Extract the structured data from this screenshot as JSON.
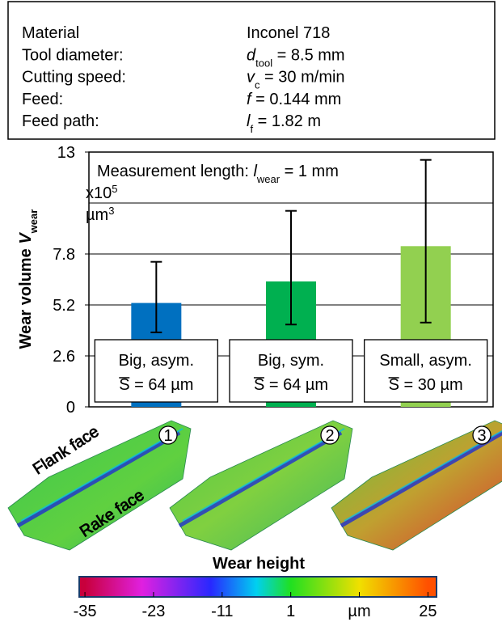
{
  "parameters": [
    {
      "label": "Material",
      "value": "Inconel 718"
    },
    {
      "label": "Tool diameter:",
      "symbol": "d",
      "subscript": "tool",
      "value": " = 8.5 mm"
    },
    {
      "label": "Cutting speed:",
      "symbol": "v",
      "subscript": "c",
      "value": " = 30 m/min"
    },
    {
      "label": "Feed:",
      "symbol": "f",
      "value": " = 0.144 mm"
    },
    {
      "label": "Feed path:",
      "symbol": "l",
      "subscript": "f",
      "value": " = 1.82 m"
    }
  ],
  "chart_data": {
    "type": "bar",
    "ylabel": "Wear volume ",
    "ylabel_symbol": "V",
    "ylabel_subscript": "wear",
    "y_multiplier": "x10",
    "y_multiplier_exponent": "5",
    "y_unit": "µm",
    "y_unit_exponent": "3",
    "annotation": {
      "text": "Measurement length: ",
      "symbol": "l",
      "subscript": "wear",
      "value": " = 1 mm"
    },
    "categories": [
      "Big, asym.",
      "Big, sym.",
      "Small, asym."
    ],
    "category_notes": [
      {
        "symbol": "S",
        "text": " = 64 µm"
      },
      {
        "symbol": "S",
        "text": " = 64 µm"
      },
      {
        "symbol": "S",
        "text": " = 30 µm"
      }
    ],
    "values": [
      5.3,
      6.4,
      8.2
    ],
    "error_low": [
      3.8,
      4.2,
      4.3
    ],
    "error_high": [
      7.4,
      10.0,
      12.6
    ],
    "colors": [
      "#0070c0",
      "#00b050",
      "#92d050"
    ],
    "ylim": [
      0,
      13
    ],
    "yticks": [
      0,
      2.6,
      5.2,
      7.8,
      13
    ],
    "grid_lines": [
      2.6,
      5.2,
      7.8,
      10.4
    ],
    "grid": true
  },
  "insert_images": [
    {
      "number": "1"
    },
    {
      "number": "2"
    },
    {
      "number": "3"
    }
  ],
  "face_labels": [
    "Flank face",
    "Rake face"
  ],
  "colorbar": {
    "title": "Wear height",
    "lim": [
      -36,
      26.5
    ],
    "ticks": [
      -35,
      -23,
      -11,
      1,
      {
        "value": 13,
        "label": "µm"
      },
      25
    ],
    "stops": [
      {
        "value": -35,
        "color": "#c8003c"
      },
      {
        "value": -25,
        "color": "#e020e0"
      },
      {
        "value": -13,
        "color": "#2828ff"
      },
      {
        "value": -5,
        "color": "#00d0f0"
      },
      {
        "value": 1,
        "color": "#20e020"
      },
      {
        "value": 13,
        "color": "#f0e000"
      },
      {
        "value": 25,
        "color": "#ff5000"
      }
    ]
  }
}
